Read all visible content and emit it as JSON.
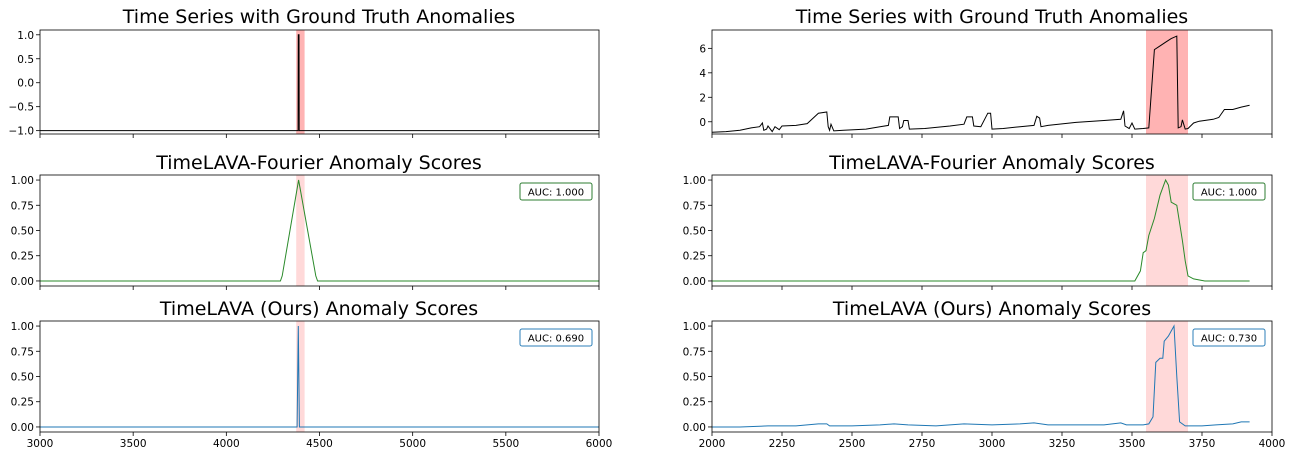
{
  "chart_data": [
    {
      "id": "left-series",
      "type": "line",
      "title": "Time Series with Ground Truth Anomalies",
      "xlim": [
        3000,
        6000
      ],
      "ylim": [
        -1.07,
        1.1
      ],
      "xticks": [
        3000,
        3500,
        4000,
        4500,
        5000,
        5500,
        6000
      ],
      "yticks": [
        -1.0,
        -0.5,
        0.0,
        0.5,
        1.0
      ],
      "ytick_labels": [
        "−1.0",
        "−0.5",
        "0.0",
        "0.5",
        "1.0"
      ],
      "show_xtick_labels": false,
      "anomaly_regions": [
        {
          "x0": 4375,
          "x1": 4420,
          "color": "#ffb3b3"
        }
      ],
      "series": [
        {
          "color": "#000000",
          "points": [
            [
              3000,
              -1
            ],
            [
              4385,
              -1
            ],
            [
              4386,
              1
            ],
            [
              4390,
              1
            ],
            [
              4391,
              -1
            ],
            [
              6000,
              -1
            ]
          ]
        }
      ]
    },
    {
      "id": "left-fourier",
      "type": "line",
      "title": "TimeLAVA-Fourier Anomaly Scores",
      "xlim": [
        3000,
        6000
      ],
      "ylim": [
        -0.05,
        1.05
      ],
      "xticks": [
        3000,
        3500,
        4000,
        4500,
        5000,
        5500,
        6000
      ],
      "yticks": [
        0.0,
        0.25,
        0.5,
        0.75,
        1.0
      ],
      "ytick_labels": [
        "0.00",
        "0.25",
        "0.50",
        "0.75",
        "1.00"
      ],
      "show_xtick_labels": false,
      "anomaly_regions": [
        {
          "x0": 4375,
          "x1": 4420,
          "color": "#ffd9d9"
        }
      ],
      "auc": {
        "label": "AUC: 1.000",
        "color": "#2e7d32"
      },
      "series": [
        {
          "color": "#2a8a2a",
          "points": [
            [
              3000,
              0
            ],
            [
              4290,
              0
            ],
            [
              4300,
              0.05
            ],
            [
              4388,
              1
            ],
            [
              4480,
              0.05
            ],
            [
              4490,
              0
            ],
            [
              6000,
              0
            ]
          ]
        }
      ]
    },
    {
      "id": "left-ours",
      "type": "line",
      "title": "TimeLAVA (Ours) Anomaly Scores",
      "xlim": [
        3000,
        6000
      ],
      "ylim": [
        -0.05,
        1.05
      ],
      "xticks": [
        3000,
        3500,
        4000,
        4500,
        5000,
        5500,
        6000
      ],
      "yticks": [
        0.0,
        0.25,
        0.5,
        0.75,
        1.0
      ],
      "ytick_labels": [
        "0.00",
        "0.25",
        "0.50",
        "0.75",
        "1.00"
      ],
      "show_xtick_labels": true,
      "anomaly_regions": [
        {
          "x0": 4375,
          "x1": 4420,
          "color": "#ffd9d9"
        }
      ],
      "auc": {
        "label": "AUC: 0.690",
        "color": "#2c7fb8"
      },
      "series": [
        {
          "color": "#1f77b4",
          "points": [
            [
              3000,
              0
            ],
            [
              4380,
              0
            ],
            [
              4386,
              1
            ],
            [
              4392,
              0
            ],
            [
              6000,
              0
            ]
          ]
        }
      ]
    },
    {
      "id": "right-series",
      "type": "line",
      "title": "Time Series with Ground Truth Anomalies",
      "xlim": [
        2000,
        4000
      ],
      "ylim": [
        -1.0,
        7.5
      ],
      "xticks": [
        2000,
        2250,
        2500,
        2750,
        3000,
        3250,
        3500,
        3750,
        4000
      ],
      "yticks": [
        0,
        2,
        4,
        6
      ],
      "ytick_labels": [
        "0",
        "2",
        "4",
        "6"
      ],
      "show_xtick_labels": false,
      "anomaly_regions": [
        {
          "x0": 3550,
          "x1": 3700,
          "color": "#ffb3b3"
        }
      ],
      "series": [
        {
          "color": "#000000",
          "points": [
            [
              2000,
              -0.85
            ],
            [
              2050,
              -0.8
            ],
            [
              2100,
              -0.7
            ],
            [
              2140,
              -0.5
            ],
            [
              2170,
              -0.4
            ],
            [
              2180,
              -0.1
            ],
            [
              2185,
              -0.7
            ],
            [
              2195,
              -0.6
            ],
            [
              2200,
              -0.35
            ],
            [
              2215,
              -0.8
            ],
            [
              2225,
              -0.4
            ],
            [
              2240,
              -0.65
            ],
            [
              2250,
              -0.35
            ],
            [
              2300,
              -0.3
            ],
            [
              2340,
              -0.15
            ],
            [
              2380,
              0.7
            ],
            [
              2410,
              0.8
            ],
            [
              2415,
              -0.4
            ],
            [
              2420,
              -0.7
            ],
            [
              2425,
              -0.2
            ],
            [
              2435,
              -0.75
            ],
            [
              2470,
              -0.7
            ],
            [
              2550,
              -0.6
            ],
            [
              2600,
              -0.4
            ],
            [
              2630,
              -0.3
            ],
            [
              2635,
              0.4
            ],
            [
              2665,
              0.4
            ],
            [
              2670,
              -0.55
            ],
            [
              2680,
              -0.4
            ],
            [
              2685,
              0.1
            ],
            [
              2700,
              0.1
            ],
            [
              2705,
              -0.6
            ],
            [
              2760,
              -0.55
            ],
            [
              2850,
              -0.35
            ],
            [
              2900,
              -0.2
            ],
            [
              2910,
              0.4
            ],
            [
              2930,
              0.4
            ],
            [
              2935,
              -0.35
            ],
            [
              2960,
              -0.4
            ],
            [
              2985,
              0.7
            ],
            [
              2995,
              0.7
            ],
            [
              3000,
              -0.6
            ],
            [
              3040,
              -0.55
            ],
            [
              3100,
              -0.4
            ],
            [
              3150,
              -0.3
            ],
            [
              3160,
              0.45
            ],
            [
              3170,
              0.3
            ],
            [
              3175,
              -0.4
            ],
            [
              3200,
              -0.3
            ],
            [
              3300,
              -0.05
            ],
            [
              3400,
              0.1
            ],
            [
              3460,
              0.2
            ],
            [
              3470,
              0.9
            ],
            [
              3475,
              -0.35
            ],
            [
              3490,
              -0.55
            ],
            [
              3500,
              -0.1
            ],
            [
              3510,
              -0.6
            ],
            [
              3540,
              -0.55
            ],
            [
              3560,
              -0.5
            ],
            [
              3580,
              5.9
            ],
            [
              3600,
              6.2
            ],
            [
              3620,
              6.5
            ],
            [
              3640,
              6.8
            ],
            [
              3660,
              7.0
            ],
            [
              3665,
              -0.5
            ],
            [
              3675,
              -0.4
            ],
            [
              3680,
              0.15
            ],
            [
              3690,
              -0.6
            ],
            [
              3700,
              -0.55
            ],
            [
              3720,
              -0.1
            ],
            [
              3740,
              0.05
            ],
            [
              3790,
              0.2
            ],
            [
              3810,
              0.35
            ],
            [
              3830,
              1.0
            ],
            [
              3860,
              1.0
            ],
            [
              3890,
              1.2
            ],
            [
              3920,
              1.35
            ]
          ]
        }
      ]
    },
    {
      "id": "right-fourier",
      "type": "line",
      "title": "TimeLAVA-Fourier Anomaly Scores",
      "xlim": [
        2000,
        4000
      ],
      "ylim": [
        -0.05,
        1.05
      ],
      "xticks": [
        2000,
        2250,
        2500,
        2750,
        3000,
        3250,
        3500,
        3750,
        4000
      ],
      "yticks": [
        0.0,
        0.25,
        0.5,
        0.75,
        1.0
      ],
      "ytick_labels": [
        "0.00",
        "0.25",
        "0.50",
        "0.75",
        "1.00"
      ],
      "show_xtick_labels": false,
      "anomaly_regions": [
        {
          "x0": 3550,
          "x1": 3700,
          "color": "#ffd9d9"
        }
      ],
      "auc": {
        "label": "AUC: 1.000",
        "color": "#2e7d32"
      },
      "series": [
        {
          "color": "#2a8a2a",
          "points": [
            [
              2000,
              0
            ],
            [
              3510,
              0
            ],
            [
              3530,
              0.1
            ],
            [
              3540,
              0.28
            ],
            [
              3550,
              0.3
            ],
            [
              3560,
              0.45
            ],
            [
              3580,
              0.62
            ],
            [
              3600,
              0.85
            ],
            [
              3620,
              1.0
            ],
            [
              3630,
              0.95
            ],
            [
              3640,
              0.78
            ],
            [
              3660,
              0.75
            ],
            [
              3680,
              0.4
            ],
            [
              3690,
              0.2
            ],
            [
              3700,
              0.05
            ],
            [
              3720,
              0.02
            ],
            [
              3760,
              0
            ],
            [
              3920,
              0
            ]
          ]
        }
      ]
    },
    {
      "id": "right-ours",
      "type": "line",
      "title": "TimeLAVA (Ours) Anomaly Scores",
      "xlim": [
        2000,
        4000
      ],
      "ylim": [
        -0.05,
        1.05
      ],
      "xticks": [
        2000,
        2250,
        2500,
        2750,
        3000,
        3250,
        3500,
        3750,
        4000
      ],
      "yticks": [
        0.0,
        0.25,
        0.5,
        0.75,
        1.0
      ],
      "ytick_labels": [
        "0.00",
        "0.25",
        "0.50",
        "0.75",
        "1.00"
      ],
      "show_xtick_labels": true,
      "anomaly_regions": [
        {
          "x0": 3550,
          "x1": 3700,
          "color": "#ffd9d9"
        }
      ],
      "auc": {
        "label": "AUC: 0.730",
        "color": "#2c7fb8"
      },
      "series": [
        {
          "color": "#1f77b4",
          "points": [
            [
              2000,
              0
            ],
            [
              2100,
              0
            ],
            [
              2200,
              0.01
            ],
            [
              2300,
              0.01
            ],
            [
              2380,
              0.03
            ],
            [
              2410,
              0.03
            ],
            [
              2420,
              0.01
            ],
            [
              2500,
              0.01
            ],
            [
              2600,
              0.02
            ],
            [
              2650,
              0.03
            ],
            [
              2700,
              0.02
            ],
            [
              2800,
              0.01
            ],
            [
              2900,
              0.03
            ],
            [
              3000,
              0.02
            ],
            [
              3100,
              0.03
            ],
            [
              3150,
              0.04
            ],
            [
              3200,
              0.02
            ],
            [
              3300,
              0.02
            ],
            [
              3400,
              0.02
            ],
            [
              3460,
              0.04
            ],
            [
              3480,
              0.02
            ],
            [
              3540,
              0.02
            ],
            [
              3560,
              0.03
            ],
            [
              3575,
              0.1
            ],
            [
              3585,
              0.64
            ],
            [
              3600,
              0.68
            ],
            [
              3610,
              0.68
            ],
            [
              3615,
              0.85
            ],
            [
              3630,
              0.9
            ],
            [
              3650,
              1.0
            ],
            [
              3660,
              0.5
            ],
            [
              3670,
              0.05
            ],
            [
              3690,
              0.01
            ],
            [
              3750,
              0.01
            ],
            [
              3800,
              0.02
            ],
            [
              3860,
              0.03
            ],
            [
              3890,
              0.05
            ],
            [
              3920,
              0.05
            ]
          ]
        }
      ]
    }
  ]
}
